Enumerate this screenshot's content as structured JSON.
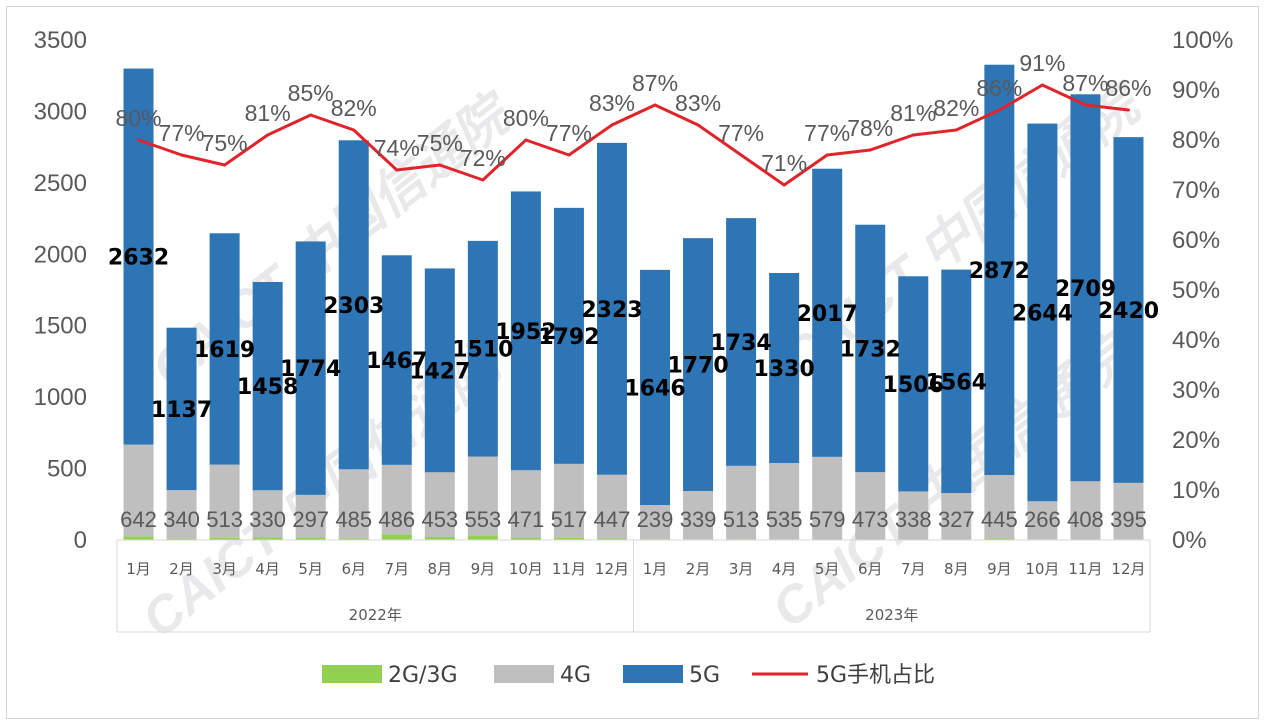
{
  "chart_data": {
    "type": "bar",
    "stacked": true,
    "years": [
      "2022年",
      "2023年"
    ],
    "categories": [
      "1月",
      "2月",
      "3月",
      "4月",
      "5月",
      "6月",
      "7月",
      "8月",
      "9月",
      "10月",
      "11月",
      "12月",
      "1月",
      "2月",
      "3月",
      "4月",
      "5月",
      "6月",
      "7月",
      "8月",
      "9月",
      "10月",
      "11月",
      "12月"
    ],
    "series": [
      {
        "name": "2G/3G",
        "color": "#92d050",
        "values": [
          26,
          9,
          15,
          18,
          19,
          10,
          40,
          21,
          31,
          17,
          16,
          10,
          6,
          4,
          6,
          4,
          3,
          2,
          2,
          2,
          10,
          5,
          3,
          5
        ]
      },
      {
        "name": "4G",
        "color": "#bfbfbf",
        "values": [
          642,
          340,
          513,
          330,
          297,
          485,
          486,
          453,
          553,
          471,
          517,
          447,
          239,
          339,
          513,
          535,
          579,
          473,
          338,
          327,
          445,
          266,
          408,
          395
        ]
      },
      {
        "name": "5G",
        "color": "#2e75b6",
        "values": [
          2632,
          1137,
          1619,
          1458,
          1774,
          2303,
          1467,
          1427,
          1510,
          1952,
          1792,
          2323,
          1646,
          1770,
          1734,
          1330,
          2017,
          1732,
          1506,
          1564,
          2872,
          2644,
          2709,
          2420
        ]
      }
    ],
    "line": {
      "name": "5G手机占比",
      "color": "#e0242b",
      "values": [
        80,
        77,
        75,
        81,
        85,
        82,
        74,
        75,
        72,
        80,
        77,
        83,
        87,
        83,
        77,
        71,
        77,
        78,
        81,
        82,
        86,
        91,
        87,
        86
      ]
    },
    "y_left": {
      "min": 0,
      "max": 3500,
      "ticks": [
        "0",
        "500",
        "1000",
        "1500",
        "2000",
        "2500",
        "3000",
        "3500"
      ]
    },
    "y_right": {
      "min": 0,
      "max": 100,
      "ticks": [
        "0%",
        "10%",
        "20%",
        "30%",
        "40%",
        "50%",
        "60%",
        "70%",
        "80%",
        "90%",
        "100%"
      ]
    },
    "legend_position": "bottom",
    "grid": false
  },
  "watermark": "CAICT 中国信通院"
}
